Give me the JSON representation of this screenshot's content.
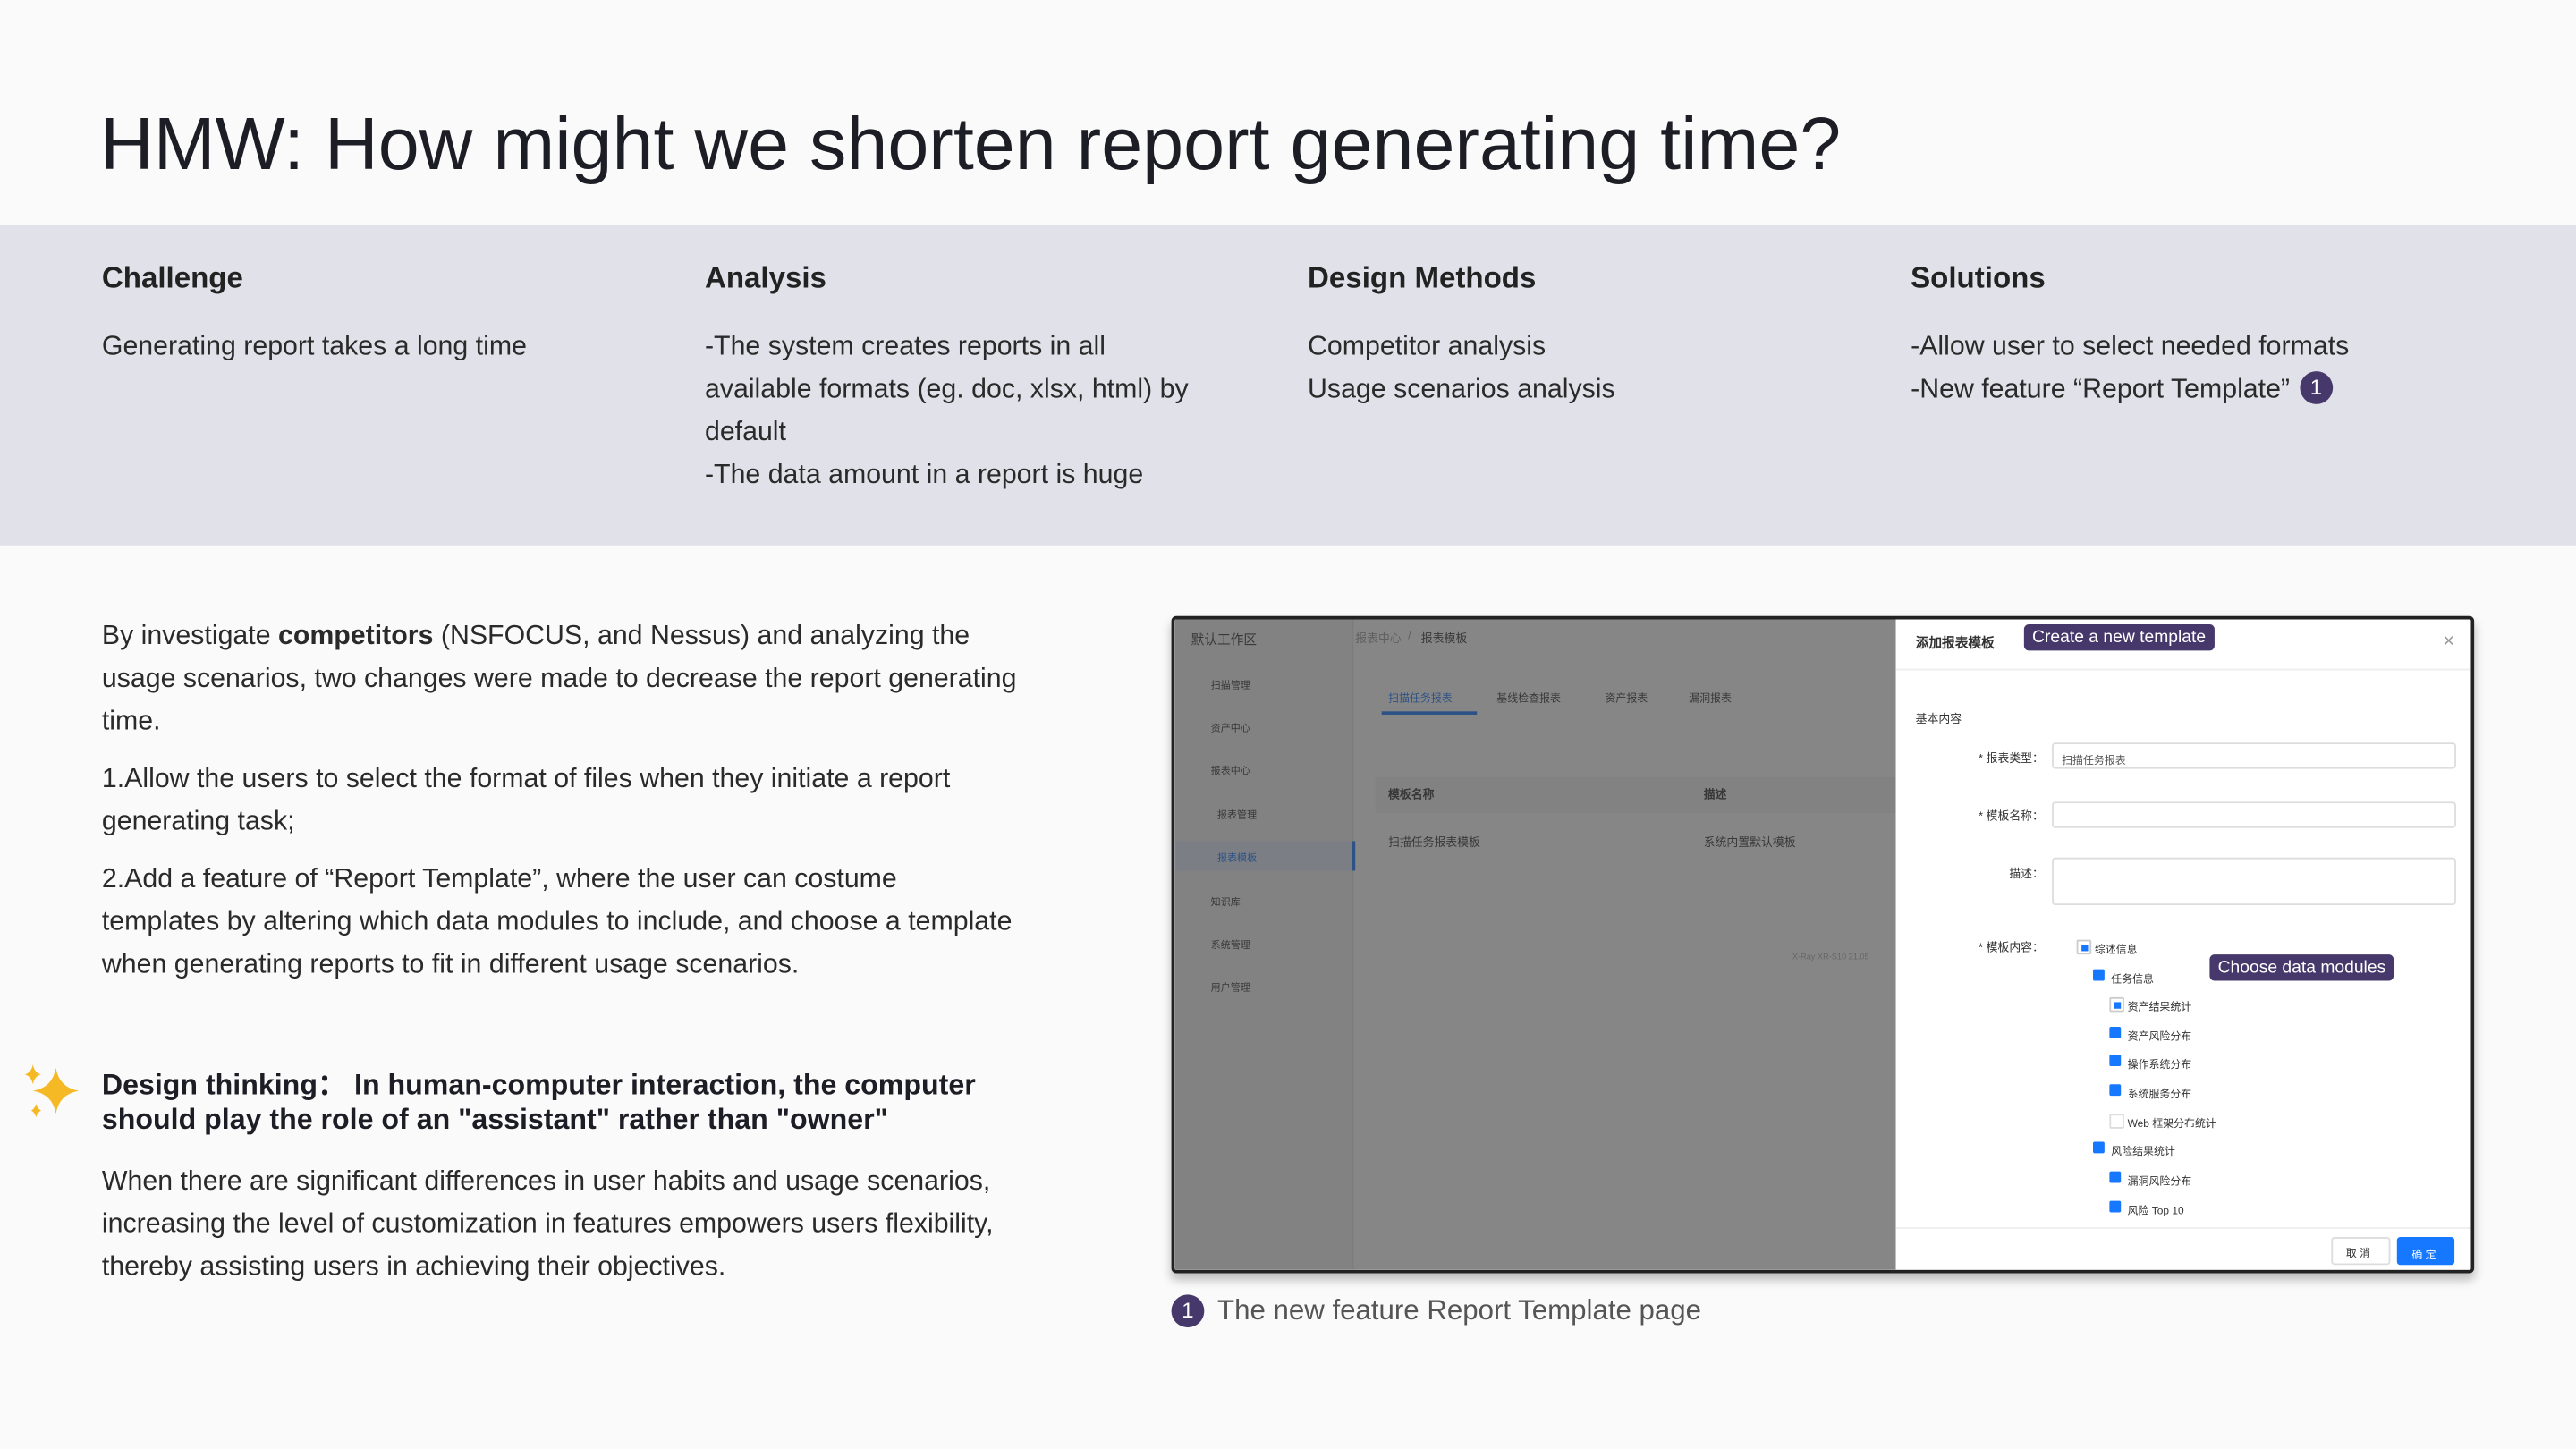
{
  "header": {
    "title": "HMW: How might we shorten report generating time?"
  },
  "columns": [
    {
      "heading": "Challenge",
      "lines": [
        "Generating report takes a long time"
      ]
    },
    {
      "heading": "Analysis",
      "lines": [
        "-The system creates reports in all available formats (eg. doc, xlsx, html) by default",
        "-The data amount in a report is huge"
      ]
    },
    {
      "heading": "Design Methods",
      "lines": [
        "Competitor analysis",
        "Usage scenarios analysis"
      ]
    },
    {
      "heading": "Solutions",
      "lines": [
        "-Allow user to select needed formats",
        "-New feature “Report Template”"
      ],
      "badge": "1"
    }
  ],
  "body": {
    "intro": [
      "By investigate ",
      "competitors",
      " (NSFOCUS, and Nessus) and analyzing the usage scenarios, two changes were made to decrease the report generating time."
    ],
    "points": [
      "1.Allow the users to select the format of files when they initiate a report generating task;",
      "2.Add a feature of “Report Template”, where the user can costume templates by altering which data modules to include, and choose a template when generating reports to fit in different usage scenarios."
    ]
  },
  "design_thinking": {
    "heading": "Design thinking：  In human-computer interaction, the computer should play the role of an \"assistant\" rather than \"owner\"",
    "text": "When there are significant differences in user habits and usage scenarios, increasing the level of customization in features empowers users flexibility,  thereby assisting users in achieving their objectives."
  },
  "screenshot": {
    "workspace": "默认工作区",
    "breadcrumb": [
      "报表中心",
      "/",
      "报表模板"
    ],
    "sidebar": [
      "扫描管理",
      "资产中心",
      "报表中心",
      "报表管理",
      "报表模板",
      "知识库",
      "系统管理",
      "用户管理"
    ],
    "tabs": [
      "扫描任务报表",
      "基线检查报表",
      "资产报表",
      "漏洞报表"
    ],
    "table_headers": [
      "模板名称",
      "描述"
    ],
    "table_row": [
      "扫描任务报表模板",
      "系统内置默认模板"
    ],
    "version": "X-Ray XR-S10 21.05",
    "drawer_title": "添加报表模板",
    "close": "×",
    "section": "基本内容",
    "fields": [
      "* 报表类型：",
      "* 模板名称：",
      "描述：",
      "* 模板内容："
    ],
    "type_value": "扫描任务报表",
    "tree": [
      "综述信息",
      "任务信息",
      "资产结果统计",
      "资产风险分布",
      "操作系统分布",
      "系统服务分布",
      "Web 框架分布统计",
      "风险结果统计",
      "漏洞风险分布",
      "风险 Top 10"
    ],
    "buttons": [
      "取 消",
      "确 定"
    ],
    "callouts": [
      "Create a new template",
      "Choose data modules"
    ]
  },
  "caption": {
    "badge": "1",
    "text": "The new feature Report Template page"
  }
}
